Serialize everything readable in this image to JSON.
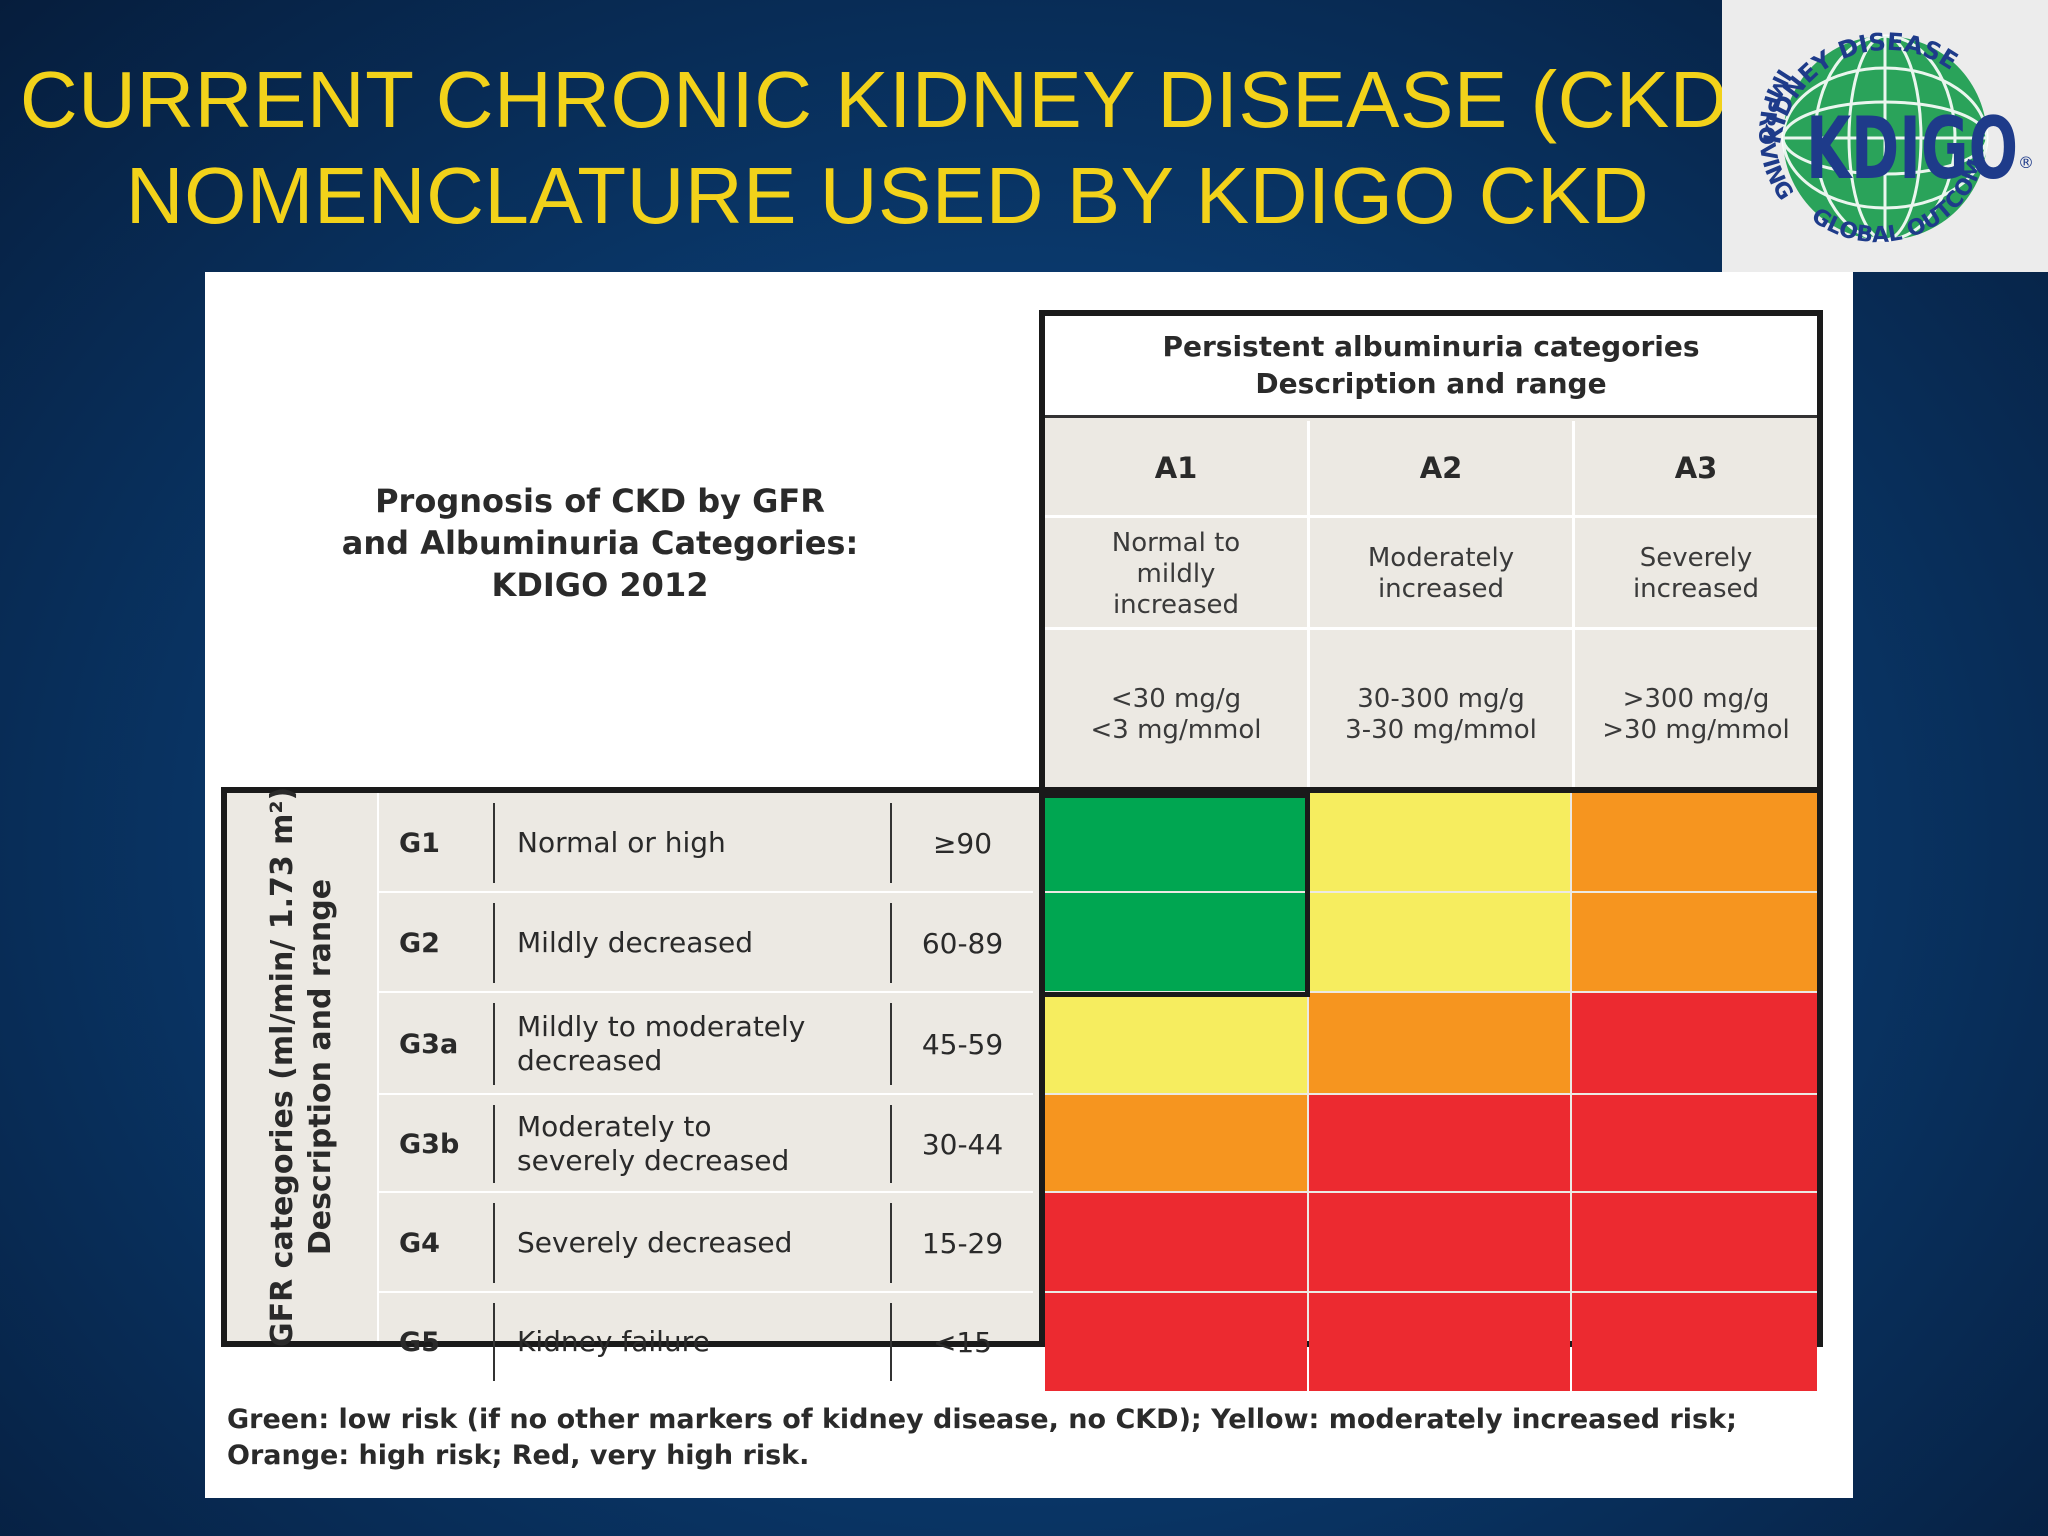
{
  "slide": {
    "title_line1": "CURRENT CHRONIC KIDNEY DISEASE (CKD)",
    "title_line2": "NOMENCLATURE USED BY KDIGO CKD"
  },
  "logo": {
    "arc_top": "KIDNEY DISEASE",
    "arc_left": "IMPROVING",
    "arc_bottom": "GLOBAL OUTCOMES",
    "wordmark": "KDIGO",
    "registered": "®"
  },
  "figure": {
    "title_lines": [
      "Prognosis of CKD by GFR",
      "and Albuminuria Categories:",
      "KDIGO 2012"
    ],
    "albuminuria_header_line1": "Persistent albuminuria categories",
    "albuminuria_header_line2": "Description and range",
    "albuminuria_categories": [
      {
        "code": "A1",
        "description": "Normal to\nmildly\nincreased",
        "range": "<30 mg/g\n<3 mg/mmol"
      },
      {
        "code": "A2",
        "description": "Moderately\nincreased",
        "range": "30-300 mg/g\n3-30 mg/mmol"
      },
      {
        "code": "A3",
        "description": "Severely\nincreased",
        "range": ">300 mg/g\n>30 mg/mmol"
      }
    ],
    "gfr_axis_line1": "GFR categories (ml/min/ 1.73 m²)",
    "gfr_axis_line2": "Description and range",
    "gfr_categories": [
      {
        "code": "G1",
        "description": "Normal or high",
        "range": "≥90",
        "risk": [
          "green",
          "yellow",
          "orange"
        ]
      },
      {
        "code": "G2",
        "description": "Mildly decreased",
        "range": "60-89",
        "risk": [
          "green",
          "yellow",
          "orange"
        ]
      },
      {
        "code": "G3a",
        "description": "Mildly to moderately\ndecreased",
        "range": "45-59",
        "risk": [
          "yellow",
          "orange",
          "red"
        ]
      },
      {
        "code": "G3b",
        "description": "Moderately to\nseverely decreased",
        "range": "30-44",
        "risk": [
          "orange",
          "red",
          "red"
        ]
      },
      {
        "code": "G4",
        "description": "Severely decreased",
        "range": "15-29",
        "risk": [
          "red",
          "red",
          "red"
        ]
      },
      {
        "code": "G5",
        "description": "Kidney failure",
        "range": "<15",
        "risk": [
          "red",
          "red",
          "red"
        ]
      }
    ],
    "risk_colors": {
      "green": "#00a651",
      "yellow": "#f6ed5f",
      "orange": "#f6951f",
      "red": "#ec2a30"
    },
    "legend_line1": "Green: low risk (if no other markers of kidney disease, no CKD); Yellow: moderately increased risk;",
    "legend_line2": "Orange: high risk; Red, very high risk."
  }
}
